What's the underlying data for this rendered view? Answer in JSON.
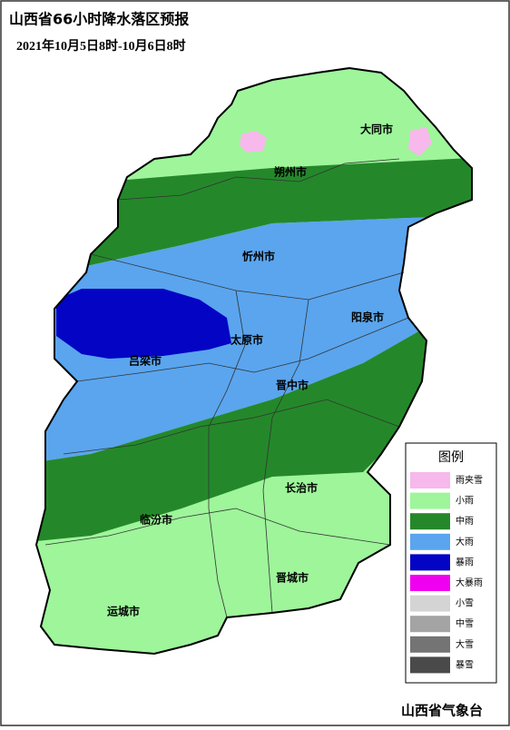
{
  "header": {
    "title": "山西省66小时降水落区预报",
    "subtitle": "2021年10月5日8时-10月6日8时"
  },
  "legend": {
    "title": "图例",
    "items": [
      {
        "label": "雨夹雪",
        "color": "#f7b8ec"
      },
      {
        "label": "小雨",
        "color": "#9ef59a"
      },
      {
        "label": "中雨",
        "color": "#24882a"
      },
      {
        "label": "大雨",
        "color": "#5aa5ee"
      },
      {
        "label": "暴雨",
        "color": "#0404c4"
      },
      {
        "label": "大暴雨",
        "color": "#f000f0"
      },
      {
        "label": "小雪",
        "color": "#d4d4d4"
      },
      {
        "label": "中雪",
        "color": "#a4a4a4"
      },
      {
        "label": "大雪",
        "color": "#747474"
      },
      {
        "label": "暴雪",
        "color": "#4a4a4a"
      }
    ]
  },
  "cities": [
    "大同市",
    "朔州市",
    "忻州市",
    "阳泉市",
    "太原市",
    "吕梁市",
    "晋中市",
    "长治市",
    "临汾市",
    "晋城市",
    "运城市"
  ],
  "footer": "山西省气象台"
}
